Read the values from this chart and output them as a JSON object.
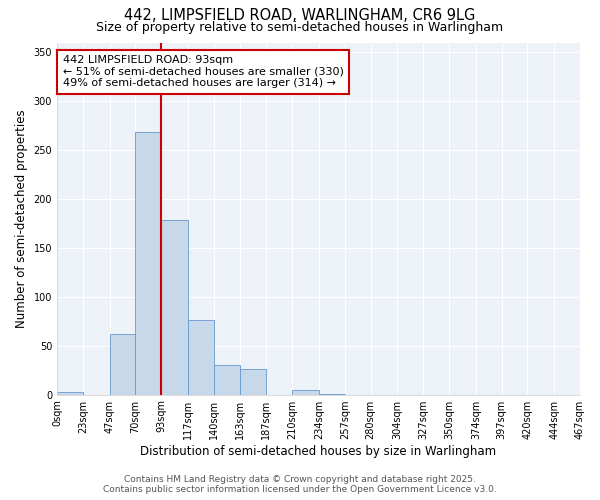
{
  "title_line1": "442, LIMPSFIELD ROAD, WARLINGHAM, CR6 9LG",
  "title_line2": "Size of property relative to semi-detached houses in Warlingham",
  "xlabel": "Distribution of semi-detached houses by size in Warlingham",
  "ylabel": "Number of semi-detached properties",
  "bin_edges": [
    0,
    23,
    47,
    70,
    93,
    117,
    140,
    163,
    187,
    210,
    234,
    257,
    280,
    304,
    327,
    350,
    374,
    397,
    420,
    444,
    467
  ],
  "bin_labels": [
    "0sqm",
    "23sqm",
    "47sqm",
    "70sqm",
    "93sqm",
    "117sqm",
    "140sqm",
    "163sqm",
    "187sqm",
    "210sqm",
    "234sqm",
    "257sqm",
    "280sqm",
    "304sqm",
    "327sqm",
    "350sqm",
    "374sqm",
    "397sqm",
    "420sqm",
    "444sqm",
    "467sqm"
  ],
  "counts": [
    3,
    0,
    62,
    268,
    179,
    76,
    30,
    26,
    0,
    5,
    1,
    0,
    0,
    0,
    0,
    0,
    0,
    0,
    0,
    0
  ],
  "bar_color": "#c8d8eb",
  "bar_edge_color": "#6699cc",
  "vline_x": 93,
  "vline_color": "#cc0000",
  "annotation_title": "442 LIMPSFIELD ROAD: 93sqm",
  "annotation_line2": "← 51% of semi-detached houses are smaller (330)",
  "annotation_line3": "49% of semi-detached houses are larger (314) →",
  "annotation_box_facecolor": "#ffffff",
  "annotation_box_edgecolor": "#cc0000",
  "ylim": [
    0,
    360
  ],
  "yticks": [
    0,
    50,
    100,
    150,
    200,
    250,
    300,
    350
  ],
  "footer_line1": "Contains HM Land Registry data © Crown copyright and database right 2025.",
  "footer_line2": "Contains public sector information licensed under the Open Government Licence v3.0.",
  "fig_facecolor": "#ffffff",
  "axes_facecolor": "#edf2f9",
  "grid_color": "#ffffff",
  "title_fontsize": 10.5,
  "subtitle_fontsize": 9,
  "axis_label_fontsize": 8.5,
  "tick_fontsize": 7,
  "annotation_fontsize": 8,
  "footer_fontsize": 6.5
}
